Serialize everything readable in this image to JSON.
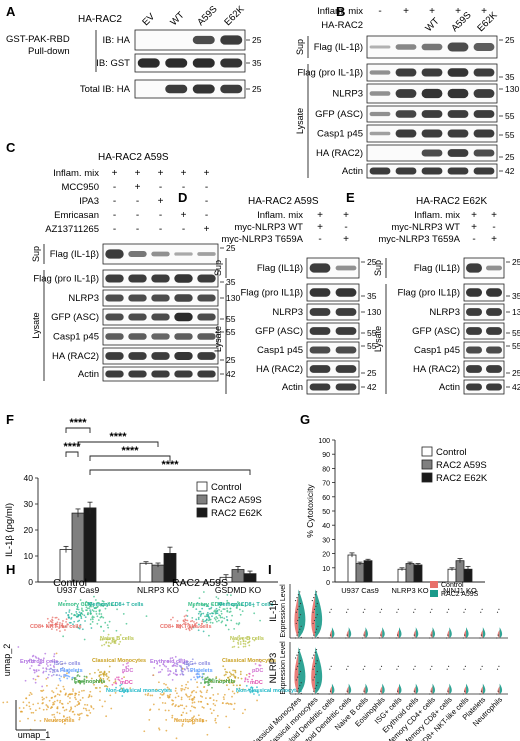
{
  "panels": {
    "A": {
      "letter": "A",
      "title": "HA-RAC2",
      "lanes": [
        "EV",
        "WT",
        "A59S",
        "E62K"
      ],
      "group_label_1": "GST-PAK-RBD",
      "group_label_2": "Pull-down",
      "blots": [
        {
          "label": "IB: HA",
          "mw": "25"
        },
        {
          "label": "IB: GST",
          "mw": "35"
        },
        {
          "label": "Total IB: HA",
          "mw": "25"
        }
      ]
    },
    "B": {
      "letter": "B",
      "rows": [
        {
          "label": "Inflam. mix",
          "values": [
            "-",
            "+",
            "+",
            "+",
            "+"
          ]
        },
        {
          "label": "HA-RAC2",
          "values": [
            "",
            "",
            "WT",
            "A59S",
            "E62K"
          ]
        }
      ],
      "sup_label": "Sup",
      "lysate_label": "Lysate",
      "blots": [
        {
          "label": "Flag (IL-1β)",
          "mw": "25"
        },
        {
          "label": "Flag (pro IL-1β)",
          "mw": "35"
        },
        {
          "label": "NLRP3",
          "mw": "130"
        },
        {
          "label": "GFP (ASC)",
          "mw": "55"
        },
        {
          "label": "Casp1 p45",
          "mw": "55"
        },
        {
          "label": "HA (RAC2)",
          "mw": "25"
        },
        {
          "label": "Actin",
          "mw": "42"
        }
      ]
    },
    "C": {
      "letter": "C",
      "title": "HA-RAC2 A59S",
      "rows": [
        {
          "label": "Inflam. mix",
          "values": [
            "+",
            "+",
            "+",
            "+",
            "+"
          ]
        },
        {
          "label": "MCC950",
          "values": [
            "-",
            "+",
            "-",
            "-",
            "-"
          ]
        },
        {
          "label": "IPA3",
          "values": [
            "-",
            "-",
            "+",
            "-",
            "-"
          ]
        },
        {
          "label": "Emricasan",
          "values": [
            "-",
            "-",
            "-",
            "+",
            "-"
          ]
        },
        {
          "label": "AZ13711265",
          "values": [
            "-",
            "-",
            "-",
            "-",
            "+"
          ]
        }
      ],
      "sup_label": "Sup",
      "lysate_label": "Lysate",
      "blots": [
        {
          "label": "Flag (IL-1β)",
          "mw": "25"
        },
        {
          "label": "Flag (pro IL-1β)",
          "mw": "35"
        },
        {
          "label": "NLRP3",
          "mw": "130"
        },
        {
          "label": "GFP (ASC)",
          "mw": "55"
        },
        {
          "label": "Casp1 p45",
          "mw": "55"
        },
        {
          "label": "HA (RAC2)",
          "mw": "25"
        },
        {
          "label": "Actin",
          "mw": "42"
        }
      ]
    },
    "D": {
      "letter": "D",
      "title": "HA-RAC2 A59S",
      "rows": [
        {
          "label": "Inflam. mix",
          "values": [
            "+",
            "+"
          ]
        },
        {
          "label": "myc-NLRP3 WT",
          "values": [
            "+",
            "-"
          ]
        },
        {
          "label": "myc-NLRP3 T659A",
          "values": [
            "-",
            "+"
          ]
        }
      ],
      "sup_label": "Sup",
      "lysate_label": "Lysate",
      "blots": [
        {
          "label": "Flag (IL1β)",
          "mw": "25"
        },
        {
          "label": "Flag (pro IL1β)",
          "mw": "35"
        },
        {
          "label": "NLRP3",
          "mw": "130"
        },
        {
          "label": "GFP (ASC)",
          "mw": "55"
        },
        {
          "label": "Casp1 p45",
          "mw": "55"
        },
        {
          "label": "HA (RAC2)",
          "mw": "25"
        },
        {
          "label": "Actin",
          "mw": "42"
        }
      ]
    },
    "E": {
      "letter": "E",
      "title": "HA-RAC2 E62K",
      "rows": [
        {
          "label": "Inflam. mix",
          "values": [
            "+",
            "+"
          ]
        },
        {
          "label": "myc-NLRP3 WT",
          "values": [
            "+",
            "-"
          ]
        },
        {
          "label": "myc-NLRP3 T659A",
          "values": [
            "-",
            "+"
          ]
        }
      ],
      "sup_label": "Sup",
      "lysate_label": "Lysate",
      "blots": [
        {
          "label": "Flag (IL1β)",
          "mw": "25"
        },
        {
          "label": "Flag (pro IL1β)",
          "mw": "35"
        },
        {
          "label": "NLRP3",
          "mw": "130"
        },
        {
          "label": "GFP (ASC)",
          "mw": "55"
        },
        {
          "label": "Casp1 p45",
          "mw": "55"
        },
        {
          "label": "HA (RAC2)",
          "mw": "25"
        },
        {
          "label": "Actin",
          "mw": "42"
        }
      ]
    },
    "F": {
      "letter": "F",
      "significance": "****"
    },
    "G": {
      "letter": "G"
    },
    "H": {
      "letter": "H",
      "titles": [
        "Control",
        "RAC2 A59S"
      ],
      "xlabel": "umap_1",
      "ylabel": "umap_2",
      "clusters": [
        {
          "name": "Memory CD4+ T cells",
          "color": "#3cc08a"
        },
        {
          "name": "Memory CD8+ T cells",
          "color": "#22b0a0"
        },
        {
          "name": "CD8+ NKT-like cells",
          "color": "#e8706a"
        },
        {
          "name": "Naive B cells",
          "color": "#b7c34a"
        },
        {
          "name": "Classical Monocytes",
          "color": "#c9a020"
        },
        {
          "name": "pDC",
          "color": "#d070d0"
        },
        {
          "name": "Erythroid cells",
          "color": "#b070e0"
        },
        {
          "name": "ISG+ cells",
          "color": "#8a8ae0"
        },
        {
          "name": "Platelets",
          "color": "#60a0ff"
        },
        {
          "name": "Eosinophils",
          "color": "#40a040"
        },
        {
          "name": "mDC",
          "color": "#e050b0"
        },
        {
          "name": "Non-classical monocytes",
          "color": "#20b8c8"
        },
        {
          "name": "Neutrophils",
          "color": "#e0a030"
        }
      ]
    },
    "I": {
      "letter": "I",
      "legend": [
        {
          "name": "Control",
          "color": "#e8706a"
        },
        {
          "name": "RAC2 A59S",
          "color": "#1a9a8a"
        }
      ],
      "rows": [
        {
          "gene": "IL-1β",
          "axis": "Expression Level"
        },
        {
          "gene": "NLRP3",
          "axis": "Expression Level"
        }
      ],
      "cell_types": [
        "Classical Monocytes",
        "Non-classical monocytes",
        "Myeloid Dendritic cells",
        "Plasmacytoid Dendritic cells",
        "Naive B cells",
        "Eosinophils",
        "ISG+ cells",
        "Erythroid cells",
        "Memory CD4+ cells",
        "Memory CD8+ cells",
        "CD8+ NKT-like cells",
        "Platelets",
        "Neutrophils"
      ]
    }
  },
  "chart_data": [
    {
      "type": "bar",
      "ylabel": "IL-1β (pg/ml)",
      "ylim": [
        0,
        40
      ],
      "yticks": [
        "0",
        "10",
        "20",
        "30",
        "40"
      ],
      "categories": [
        "U937 Cas9",
        "NLRP3 KO",
        "GSDMD KO"
      ],
      "legend": "right",
      "series": [
        {
          "name": "Control",
          "color": "#ffffff",
          "values": [
            12.5,
            7.2,
            1.8
          ],
          "errors": [
            1.2,
            0.6,
            1.0
          ]
        },
        {
          "name": "RAC2 A59S",
          "color": "#7f7f7f",
          "values": [
            26.5,
            6.5,
            4.8
          ],
          "errors": [
            1.6,
            0.8,
            1.2
          ]
        },
        {
          "name": "RAC2 E62K",
          "color": "#1a1a1a",
          "values": [
            28.5,
            11.0,
            3.2
          ],
          "errors": [
            2.2,
            2.4,
            1.0
          ]
        }
      ],
      "significance": [
        {
          "label": "****",
          "from": [
            0,
            0
          ],
          "to": [
            0,
            1
          ]
        },
        {
          "label": "****",
          "from": [
            0,
            0
          ],
          "to": [
            0,
            2
          ]
        },
        {
          "label": "****",
          "from": [
            0,
            1
          ],
          "to": [
            1,
            1
          ]
        },
        {
          "label": "****",
          "from": [
            0,
            2
          ],
          "to": [
            1,
            2
          ]
        },
        {
          "label": "****",
          "from": [
            0,
            2
          ],
          "to": [
            2,
            2
          ]
        }
      ]
    },
    {
      "type": "bar",
      "ylabel": "% Cytotoxicity",
      "ylim": [
        0,
        100
      ],
      "yticks": [
        "0",
        "10",
        "20",
        "30",
        "40",
        "50",
        "60",
        "70",
        "80",
        "90",
        "100"
      ],
      "categories": [
        "U937 Cas9",
        "NLRP3 KO",
        "NINJ1 KO"
      ],
      "legend": "top-right",
      "series": [
        {
          "name": "Control",
          "color": "#ffffff",
          "values": [
            19,
            9,
            9
          ],
          "errors": [
            1.5,
            1.0,
            1.0
          ]
        },
        {
          "name": "RAC2 A59S",
          "color": "#7f7f7f",
          "values": [
            13,
            13,
            15
          ],
          "errors": [
            1.0,
            1.0,
            1.5
          ]
        },
        {
          "name": "RAC2 E62K",
          "color": "#1a1a1a",
          "values": [
            15,
            12,
            9
          ],
          "errors": [
            1.0,
            1.0,
            2.0
          ]
        }
      ]
    }
  ]
}
